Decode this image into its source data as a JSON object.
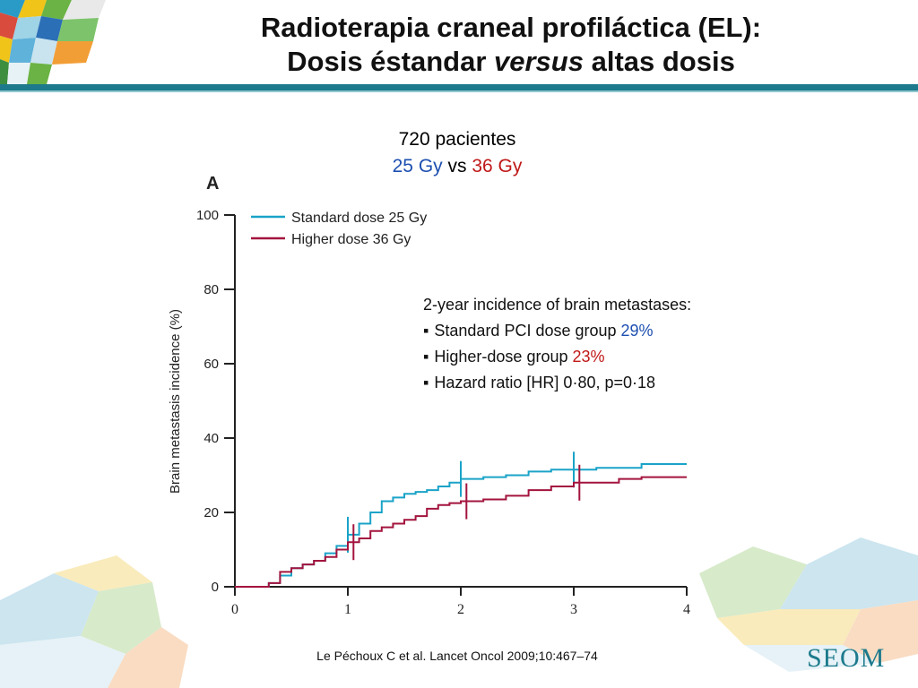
{
  "slide": {
    "title_line1": "Radioterapia craneal profiláctica (EL):",
    "title_line2_a": "Dosis éstandar ",
    "title_line2_b": "versus",
    "title_line2_c": " altas dosis",
    "patients": "720 pacientes",
    "dose_a": "25 Gy",
    "dose_vs": "vs",
    "dose_b": "36 Gy",
    "panel_label": "A",
    "citation": "Le Péchoux C et al. Lancet Oncol 2009;10:467–74",
    "logo_text": "SEOM"
  },
  "info_box": {
    "heading": "2-year incidence of brain metastases:",
    "item1_text": "Standard PCI dose group ",
    "item1_value": "29%",
    "item2_text": "Higher-dose group ",
    "item2_value": "23%",
    "item3_text": "Hazard ratio [HR] 0·80, p=0·18"
  },
  "colors": {
    "standard": "#1aa3c8",
    "higher": "#a3143e",
    "accent": "#1c7a8c",
    "blue_text": "#1d4fb0",
    "red_text": "#c01818"
  },
  "chart_data": {
    "type": "line",
    "ylabel": "Brain metastasis incidence (%)",
    "xlabel": "",
    "xlim": [
      0,
      4
    ],
    "ylim": [
      0,
      100
    ],
    "x_ticks": [
      0,
      1,
      2,
      3,
      4
    ],
    "y_ticks": [
      0,
      20,
      40,
      60,
      80,
      100
    ],
    "grid": false,
    "legend_position": "top-left",
    "series": [
      {
        "name": "Standard dose 25 Gy",
        "color": "#1aa3c8",
        "x": [
          0,
          0.2,
          0.3,
          0.4,
          0.5,
          0.6,
          0.7,
          0.8,
          0.9,
          1.0,
          1.1,
          1.2,
          1.3,
          1.4,
          1.5,
          1.6,
          1.7,
          1.8,
          1.9,
          2.0,
          2.2,
          2.4,
          2.6,
          2.8,
          3.0,
          3.2,
          3.4,
          3.6,
          3.8,
          4.0
        ],
        "y": [
          0,
          0,
          1,
          3,
          5,
          6,
          7,
          9,
          11,
          14,
          17,
          20,
          23,
          24,
          25,
          25.5,
          26,
          27,
          28,
          29,
          29.5,
          30,
          31,
          31.5,
          31.5,
          32,
          32,
          33,
          33,
          33
        ],
        "censor_x": [
          1.0,
          2.0,
          3.0
        ]
      },
      {
        "name": "Higher dose 36 Gy",
        "color": "#a3143e",
        "x": [
          0,
          0.2,
          0.3,
          0.4,
          0.5,
          0.6,
          0.7,
          0.8,
          0.9,
          1.0,
          1.1,
          1.2,
          1.3,
          1.4,
          1.5,
          1.6,
          1.7,
          1.8,
          1.9,
          2.0,
          2.2,
          2.4,
          2.6,
          2.8,
          3.0,
          3.2,
          3.4,
          3.6,
          3.8,
          4.0
        ],
        "y": [
          0,
          0,
          1,
          4,
          5,
          6,
          7,
          8,
          10,
          12,
          13,
          15,
          16,
          17,
          18,
          19,
          21,
          22,
          22.5,
          23,
          23.5,
          24.5,
          26,
          27,
          28,
          28,
          29,
          29.5,
          29.5,
          29.5
        ],
        "censor_x": [
          1.05,
          2.05,
          3.05
        ]
      }
    ],
    "annotations": [
      "2-year incidence of brain metastases:",
      "Standard PCI dose group 29%",
      "Higher-dose group 23%",
      "Hazard ratio [HR] 0·80, p=0·18"
    ]
  }
}
